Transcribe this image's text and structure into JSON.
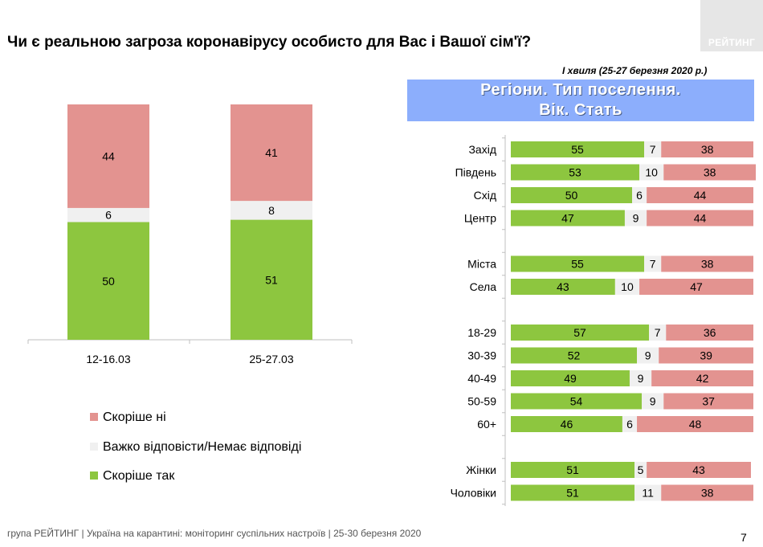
{
  "title": "Чи є реальною загроза коронавірусу особисто для Вас і Вашої сім'ї?",
  "logo": "РЕЙТИНГ",
  "wave_note": "І хвиля (25-27 березня 2020 р.)",
  "header": {
    "line1": "Регіони. Тип поселення.",
    "line2": "Вік. Стать"
  },
  "legend": [
    {
      "label": "Скоріше  ні",
      "color": "#e39390"
    },
    {
      "label": "Важко відповісти/Немає відповіді",
      "color": "#f0f0f0"
    },
    {
      "label": "Скоріше  так",
      "color": "#8dc63f"
    }
  ],
  "footer": "група РЕЙТИНГ  |  Україна на карантині: моніторинг суспільних настроїв  |  25-30 березня 2020",
  "page_number": "7",
  "colors": {
    "yes": "#8dc63f",
    "hard": "#f0f0f0",
    "no": "#e39390",
    "header": "#8caefc"
  },
  "chart_data": [
    {
      "type": "bar",
      "stacked": true,
      "categories": [
        "12-16.03",
        "25-27.03"
      ],
      "series": [
        {
          "name": "Скоріше  так",
          "values": [
            50,
            51
          ]
        },
        {
          "name": "Важко відповісти/Немає відповіді",
          "values": [
            6,
            8
          ]
        },
        {
          "name": "Скоріше  ні",
          "values": [
            44,
            41
          ]
        }
      ],
      "ylim": [
        0,
        100
      ]
    },
    {
      "type": "bar",
      "orientation": "horizontal",
      "stacked": true,
      "groups": [
        [
          "Захід",
          "Південь",
          "Схід",
          "Центр"
        ],
        [
          "Міста",
          "Села"
        ],
        [
          "18-29",
          "30-39",
          "40-49",
          "50-59",
          "60+"
        ],
        [
          "Жінки",
          "Чоловіки"
        ]
      ],
      "categories": [
        "Захід",
        "Південь",
        "Схід",
        "Центр",
        "Міста",
        "Села",
        "18-29",
        "30-39",
        "40-49",
        "50-59",
        "60+",
        "Жінки",
        "Чоловіки"
      ],
      "series": [
        {
          "name": "Скоріше  так",
          "values": [
            55,
            53,
            50,
            47,
            55,
            43,
            57,
            52,
            49,
            54,
            46,
            51,
            51
          ]
        },
        {
          "name": "Важко відповісти/Немає відповіді",
          "values": [
            7,
            10,
            6,
            9,
            7,
            10,
            7,
            9,
            9,
            9,
            6,
            5,
            11
          ]
        },
        {
          "name": "Скоріше  ні",
          "values": [
            38,
            38,
            44,
            44,
            38,
            47,
            36,
            39,
            42,
            37,
            48,
            43,
            38
          ]
        }
      ],
      "xlim": [
        0,
        100
      ]
    }
  ]
}
